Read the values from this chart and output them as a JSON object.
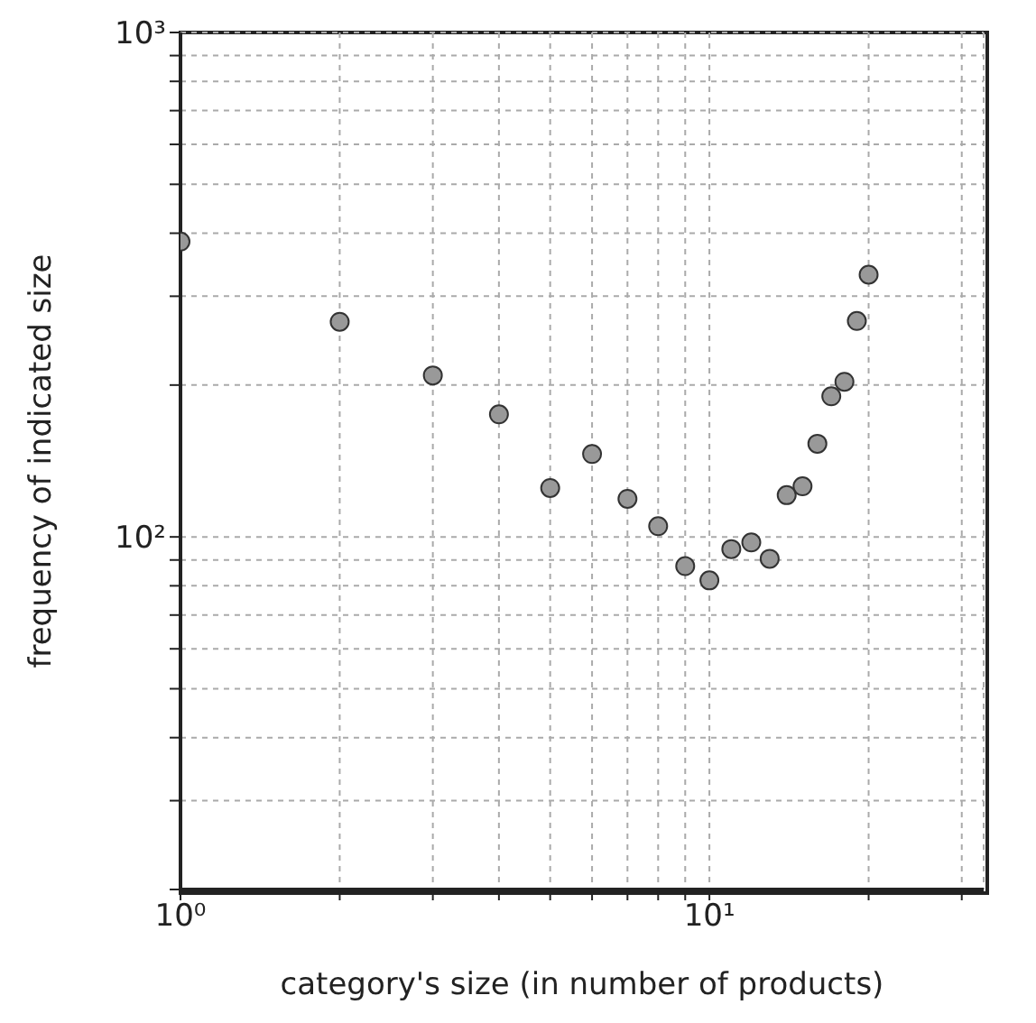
{
  "chart_data": {
    "type": "scatter",
    "xlabel": "category's size (in number of products)",
    "ylabel": "frequency of indicated size",
    "x": [
      1,
      2,
      3,
      4,
      5,
      6,
      7,
      8,
      9,
      10,
      11,
      12,
      13,
      14,
      15,
      16,
      17,
      18,
      19,
      20
    ],
    "values": [
      385,
      267,
      209,
      175,
      125,
      146,
      119,
      105,
      87.5,
      82,
      94.6,
      97.5,
      90.5,
      121,
      126,
      153,
      190,
      203,
      268,
      331
    ],
    "color": "#999999",
    "marker": "circle",
    "log": "xy",
    "grid": true,
    "xlim": [
      1,
      33
    ],
    "ylim": [
      20,
      1000
    ],
    "xticks": [
      {
        "value": 1,
        "label": "10⁰"
      },
      {
        "value": 2,
        "label": null
      },
      {
        "value": 3,
        "label": null
      },
      {
        "value": 4,
        "label": null
      },
      {
        "value": 5,
        "label": null
      },
      {
        "value": 6,
        "label": null
      },
      {
        "value": 7,
        "label": null
      },
      {
        "value": 8,
        "label": null
      },
      {
        "value": 9,
        "label": null
      },
      {
        "value": 10,
        "label": "10¹"
      },
      {
        "value": 20,
        "label": null
      },
      {
        "value": 30,
        "label": null
      }
    ],
    "yticks": [
      {
        "value": 20,
        "label": null
      },
      {
        "value": 30,
        "label": null
      },
      {
        "value": 40,
        "label": null
      },
      {
        "value": 50,
        "label": null
      },
      {
        "value": 60,
        "label": null
      },
      {
        "value": 70,
        "label": null
      },
      {
        "value": 80,
        "label": null
      },
      {
        "value": 90,
        "label": null
      },
      {
        "value": 100,
        "label": "10²"
      },
      {
        "value": 200,
        "label": null
      },
      {
        "value": 300,
        "label": null
      },
      {
        "value": 400,
        "label": null
      },
      {
        "value": 500,
        "label": null
      },
      {
        "value": 600,
        "label": null
      },
      {
        "value": 700,
        "label": null
      },
      {
        "value": 800,
        "label": null
      },
      {
        "value": 900,
        "label": null
      },
      {
        "value": 1000,
        "label": "10³"
      }
    ]
  }
}
